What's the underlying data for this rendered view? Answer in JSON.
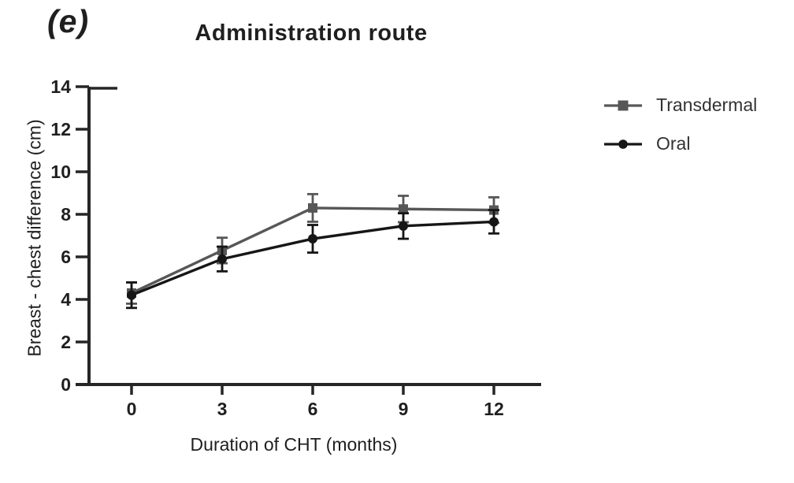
{
  "figure": {
    "panel_label": "(e)",
    "title": "Administration route"
  },
  "chart_data": {
    "type": "line",
    "title": "Administration route",
    "xlabel": "Duration of CHT (months)",
    "ylabel": "Breast - chest difference (cm)",
    "x": [
      0,
      3,
      6,
      9,
      12
    ],
    "x_tick_labels": [
      "0",
      "3",
      "6",
      "9",
      "12"
    ],
    "y_ticks": [
      0,
      2,
      4,
      6,
      8,
      10,
      12,
      14
    ],
    "y_tick_labels": [
      "0",
      "2",
      "4",
      "6",
      "8",
      "10",
      "12",
      "14"
    ],
    "xlim": [
      0,
      12
    ],
    "ylim": [
      0,
      14
    ],
    "grid": false,
    "error_bars": true,
    "legend_position": "right-top",
    "series": [
      {
        "name": "Transdermal",
        "marker": "square",
        "color": "#575757",
        "values": [
          4.3,
          6.3,
          8.3,
          8.25,
          8.2
        ],
        "errors": [
          0.5,
          0.6,
          0.65,
          0.62,
          0.6
        ]
      },
      {
        "name": "Oral",
        "marker": "circle",
        "color": "#161616",
        "values": [
          4.2,
          5.9,
          6.85,
          7.45,
          7.65
        ],
        "errors": [
          0.6,
          0.58,
          0.65,
          0.6,
          0.55
        ]
      }
    ],
    "colors": {
      "axis": "#262626",
      "text": "#1f1f1f"
    }
  }
}
